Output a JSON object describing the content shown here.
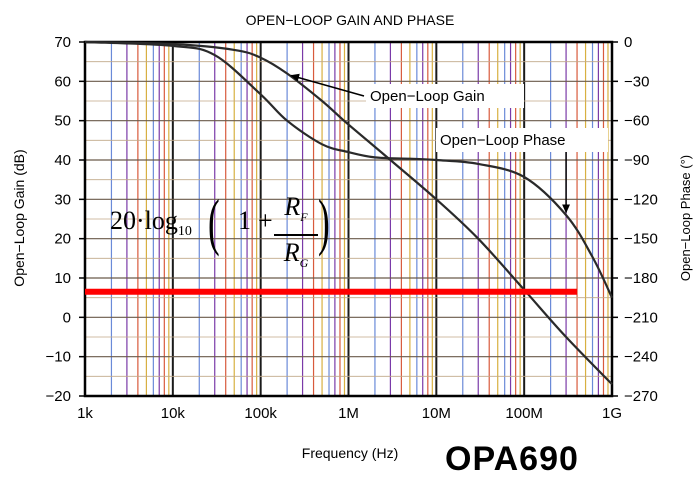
{
  "chart_data": {
    "type": "line",
    "title": "OPEN−LOOP GAIN AND PHASE",
    "xlabel": "Frequency (Hz)",
    "ylabel_left": "Open−Loop Gain (dB)",
    "ylabel_right": "Open−Loop Phase (°)",
    "x_scale": "log",
    "x_ticks": [
      "1k",
      "10k",
      "100k",
      "1M",
      "10M",
      "100M",
      "1G"
    ],
    "x_tick_values": [
      1000,
      10000,
      100000,
      1000000,
      10000000,
      100000000,
      1000000000
    ],
    "xlim": [
      1000,
      1000000000
    ],
    "y_left_ticks": [
      "70",
      "60",
      "50",
      "40",
      "30",
      "20",
      "10",
      "0",
      "−10",
      "−20"
    ],
    "y_left_tick_values": [
      70,
      60,
      50,
      40,
      30,
      20,
      10,
      0,
      -10,
      -20
    ],
    "ylim_left": [
      -20,
      70
    ],
    "y_right_ticks": [
      "0",
      "−30",
      "−60",
      "−90",
      "−120",
      "−150",
      "−180",
      "−210",
      "−240",
      "−270"
    ],
    "y_right_tick_values": [
      0,
      -30,
      -60,
      -90,
      -120,
      -150,
      -180,
      -210,
      -240,
      -270
    ],
    "ylim_right": [
      -270,
      0
    ],
    "grid": true,
    "series": [
      {
        "name": "Open−Loop Gain",
        "axis": "left",
        "x": [
          1000,
          10000,
          50000,
          100000,
          200000,
          500000,
          1000000,
          3000000,
          10000000,
          30000000,
          100000000,
          300000000,
          1000000000
        ],
        "y": [
          70,
          69.5,
          68,
          66,
          62,
          55,
          49,
          40,
          30,
          20,
          7,
          -5,
          -17
        ]
      },
      {
        "name": "Open−Loop Phase",
        "axis": "right",
        "x": [
          1000,
          10000,
          30000,
          100000,
          200000,
          500000,
          1000000,
          2000000,
          5000000,
          10000000,
          30000000,
          100000000,
          300000000,
          600000000,
          1000000000
        ],
        "y": [
          0,
          -3,
          -10,
          -40,
          -60,
          -78,
          -84,
          -88,
          -89,
          -90,
          -93,
          -103,
          -132,
          -164,
          -195
        ]
      }
    ],
    "annotations": [
      {
        "text": "Open−Loop Gain",
        "arrow_to_x": 200000,
        "arrow_to_axis": "left",
        "arrow_to_y": 62
      },
      {
        "text": "Open−Loop Phase",
        "arrow_to_x": 300000000,
        "arrow_to_axis": "right",
        "arrow_to_y": -133
      }
    ],
    "reference_line": {
      "axis": "left",
      "y": 6.5,
      "x_start": 1000,
      "x_end": 400000000,
      "color": "#ff0000"
    },
    "formula": {
      "prefix": "20·log",
      "subscript": "10",
      "one": "1",
      "plus": "+",
      "numerator": "R",
      "numerator_sub": "F",
      "denominator": "R",
      "denominator_sub": "G"
    }
  },
  "watermark": "OPA690",
  "colors": {
    "background": "#ffffff",
    "curve": "#2a2a2a",
    "reference_line": "#ff0000",
    "grid_a": "#d85a3c",
    "grid_b": "#6a8ad8",
    "grid_c": "#7a3aa8",
    "grid_d": "#d8b040",
    "grid_h": "#c0a888",
    "frame": "#000000"
  }
}
